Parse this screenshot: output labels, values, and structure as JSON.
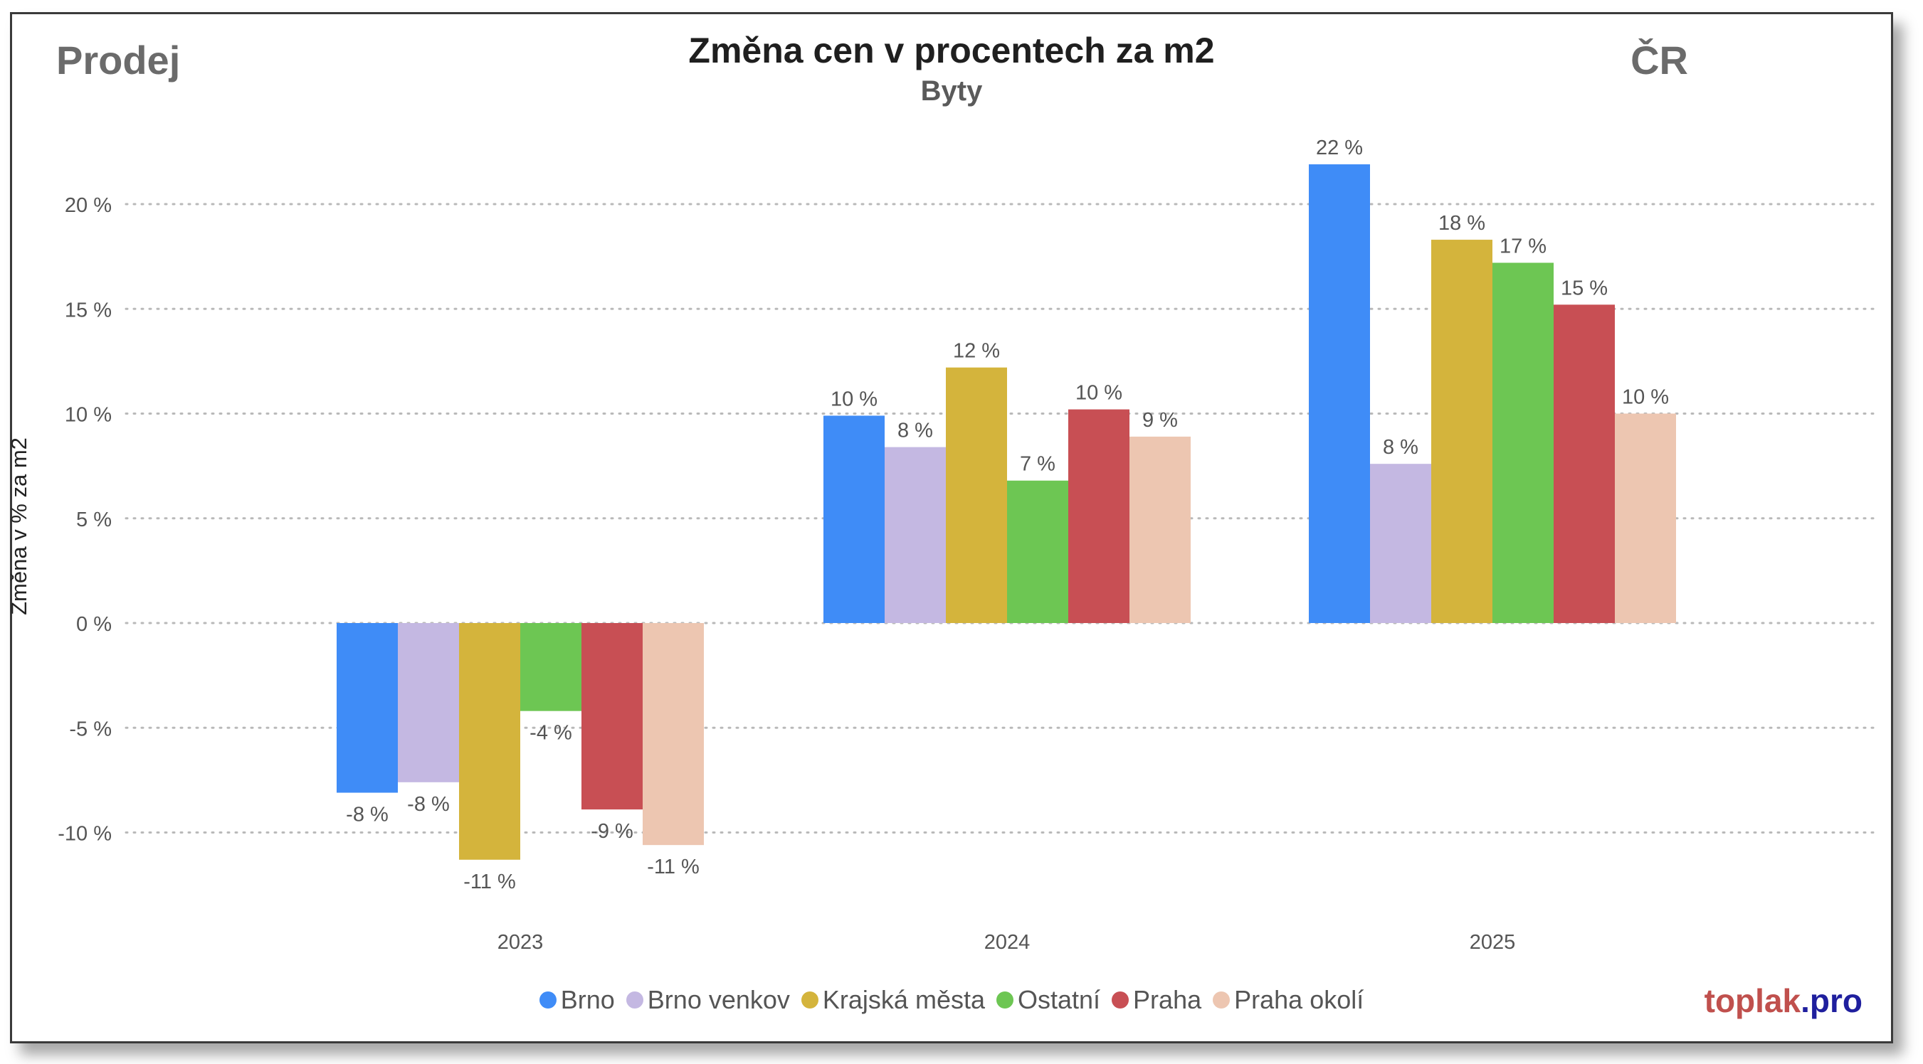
{
  "header": {
    "corner_left": "Prodej",
    "corner_right": "ČR",
    "title": "Změna cen v procentech za m2",
    "subtitle": "Byty"
  },
  "brand": {
    "part1": "toplak",
    "part2": ".pro"
  },
  "chart_data": {
    "type": "bar",
    "title": "Změna cen v procentech za m2",
    "subtitle": "Byty",
    "xlabel": "",
    "ylabel": "Změna v % za m2",
    "categories": [
      "2023",
      "2024",
      "2025"
    ],
    "ylim": [
      -12,
      23
    ],
    "yticks": [
      20,
      15,
      10,
      5,
      0,
      -5,
      -10
    ],
    "ytick_labels": [
      "20 %",
      "15 %",
      "10 %",
      "5 %",
      "0 %",
      "-5 %",
      "-10 %"
    ],
    "grid": true,
    "legend_position": "bottom",
    "series": [
      {
        "name": "Brno",
        "color": "#3f8cf7",
        "values": [
          -8.1,
          9.9,
          21.9
        ],
        "labels": [
          "-8 %",
          "10 %",
          "22 %"
        ]
      },
      {
        "name": "Brno venkov",
        "color": "#c4b8e2",
        "values": [
          -7.6,
          8.4,
          7.6
        ],
        "labels": [
          "-8 %",
          "8 %",
          "8 %"
        ]
      },
      {
        "name": "Krajská města",
        "color": "#d4b43c",
        "values": [
          -11.3,
          12.2,
          18.3
        ],
        "labels": [
          "-11 %",
          "12 %",
          "18 %"
        ]
      },
      {
        "name": "Ostatní",
        "color": "#6dc653",
        "values": [
          -4.2,
          6.8,
          17.2
        ],
        "labels": [
          "-4 %",
          "7 %",
          "17 %"
        ]
      },
      {
        "name": "Praha",
        "color": "#c84f54",
        "values": [
          -8.9,
          10.2,
          15.2
        ],
        "labels": [
          "-9 %",
          "10 %",
          "15 %"
        ]
      },
      {
        "name": "Praha okolí",
        "color": "#edc6b1",
        "values": [
          -10.6,
          8.9,
          10.0
        ],
        "labels": [
          "-11 %",
          "9 %",
          "10 %"
        ]
      }
    ]
  }
}
